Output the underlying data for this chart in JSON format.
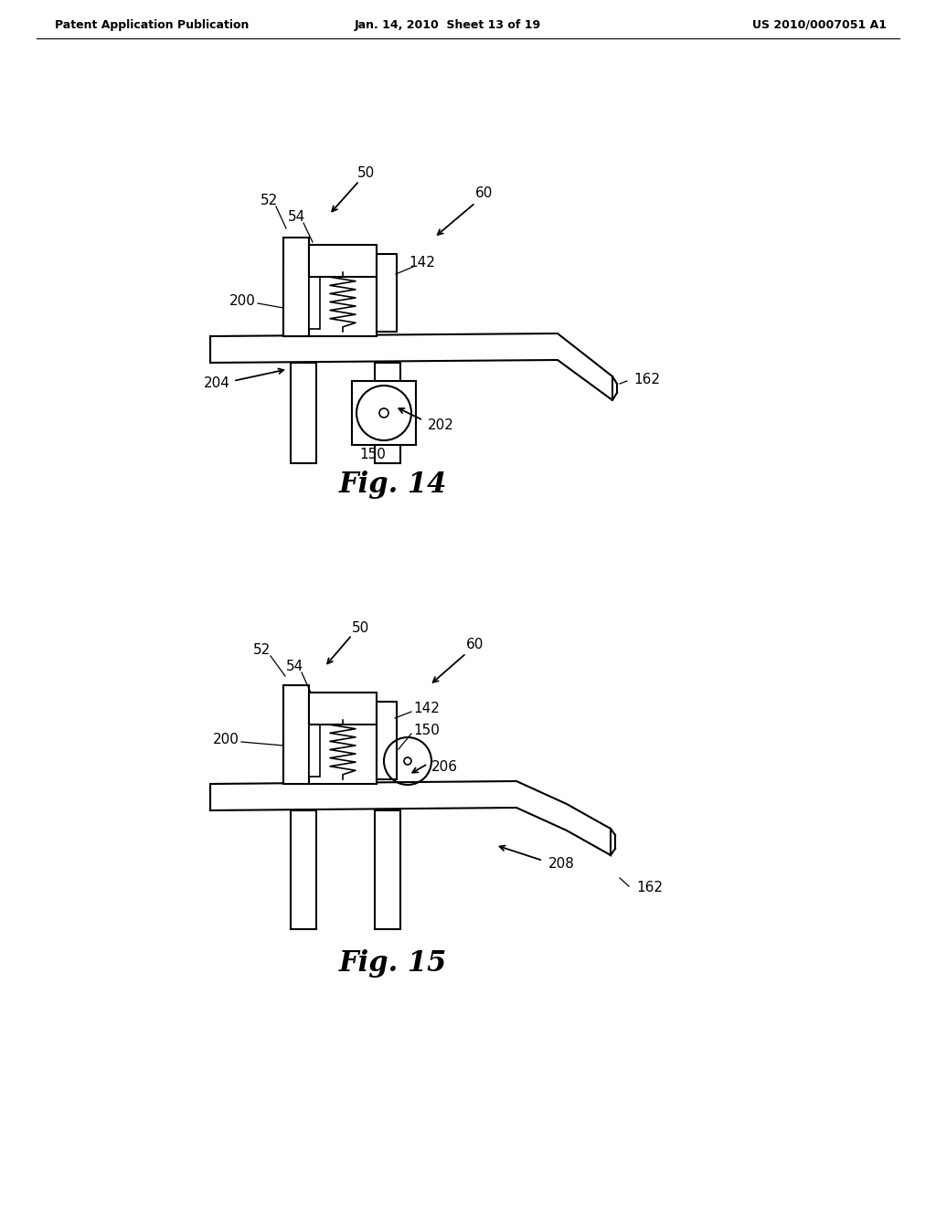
{
  "bg_color": "#ffffff",
  "header_left": "Patent Application Publication",
  "header_center": "Jan. 14, 2010  Sheet 13 of 19",
  "header_right": "US 2010/0007051 A1",
  "fig14_caption": "Fig. 14",
  "fig15_caption": "Fig. 15",
  "line_color": "#000000",
  "lw": 1.5
}
